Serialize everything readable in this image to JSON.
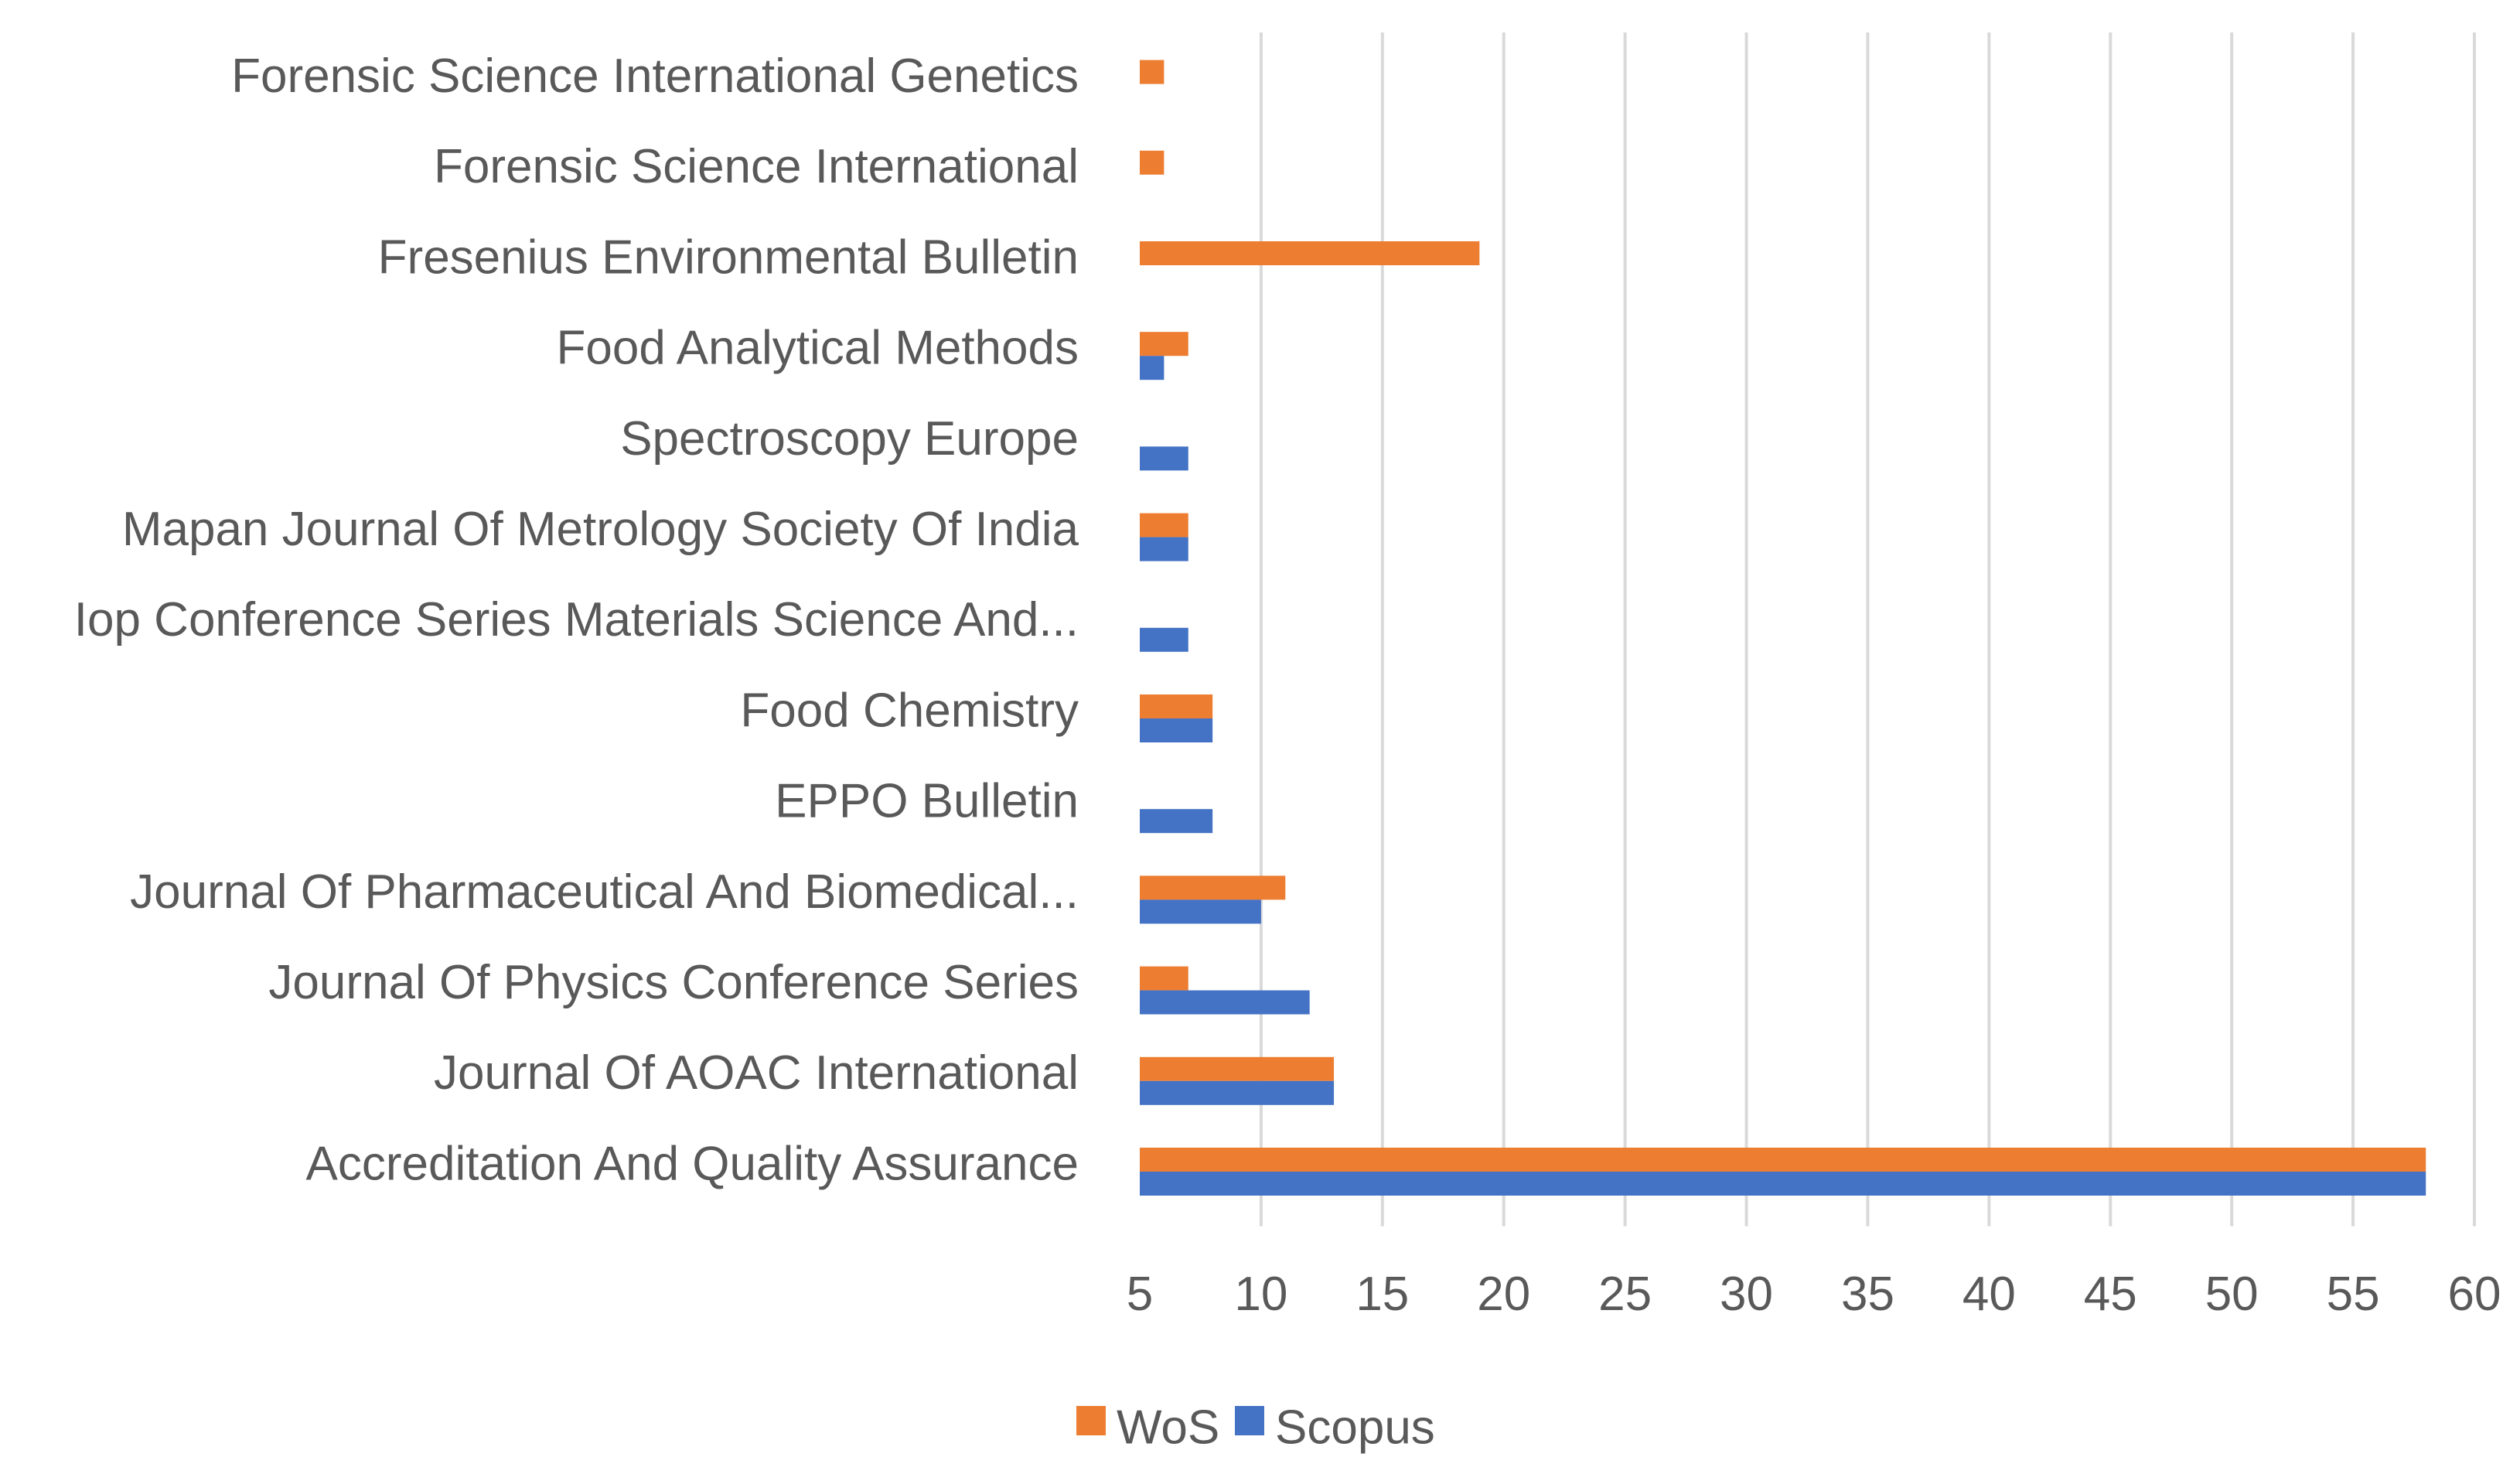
{
  "chart_data": {
    "type": "bar",
    "orientation": "horizontal",
    "title": "",
    "xlabel": "",
    "ylabel": "",
    "xlim": [
      5,
      60
    ],
    "x_ticks": [
      5,
      10,
      15,
      20,
      25,
      30,
      35,
      40,
      45,
      50,
      55,
      60
    ],
    "grid": true,
    "legend_position": "bottom",
    "categories": [
      "Forensic Science International Genetics",
      "Forensic Science International",
      "Fresenius Environmental Bulletin",
      "Food Analytical Methods",
      "Spectroscopy Europe",
      "Mapan Journal Of Metrology Society Of India",
      "Iop Conference Series Materials Science And...",
      "Food Chemistry",
      "EPPO Bulletin",
      "Journal Of Pharmaceutical And Biomedical...",
      "Journal Of Physics Conference Series",
      "Journal Of AOAC International",
      "Accreditation And Quality Assurance"
    ],
    "series": [
      {
        "name": "WoS",
        "color": "#ED7D31",
        "values": [
          6,
          6,
          19,
          7,
          null,
          7,
          null,
          8,
          null,
          11,
          7,
          13,
          58
        ]
      },
      {
        "name": "Scopus",
        "color": "#4472C4",
        "values": [
          null,
          null,
          null,
          6,
          7,
          7,
          7,
          8,
          8,
          10,
          12,
          13,
          58
        ]
      }
    ]
  }
}
